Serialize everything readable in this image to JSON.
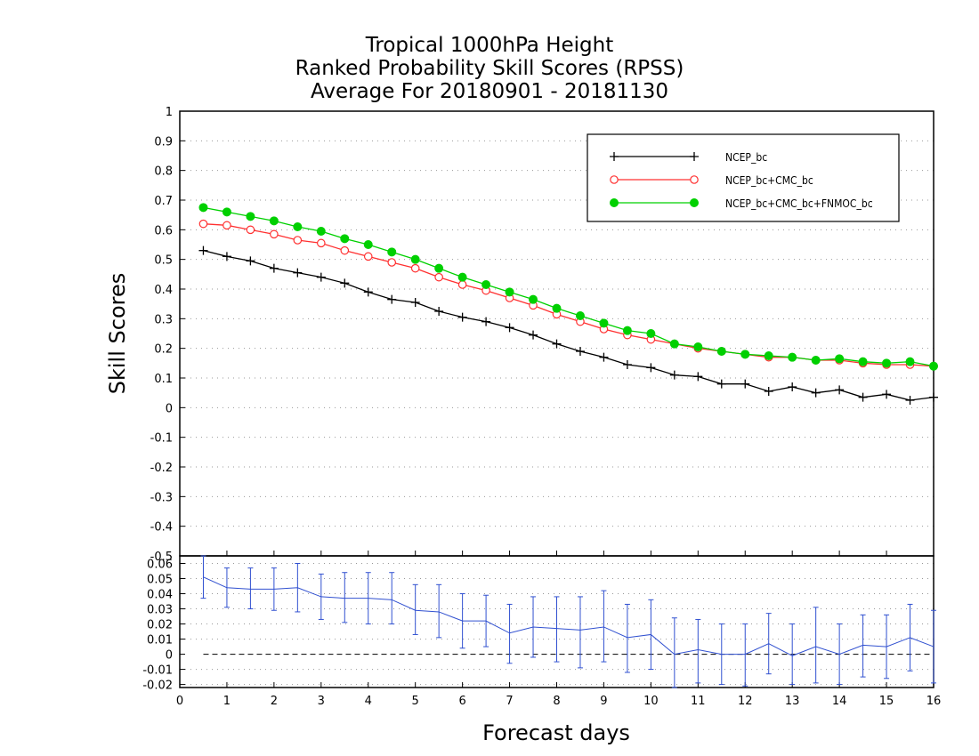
{
  "chart_data": [
    {
      "type": "line",
      "title": [
        "Tropical 1000hPa Height",
        "Ranked Probability Skill Scores (RPSS)",
        "Average For 20180901 - 20181130"
      ],
      "xlabel": "Forecast days",
      "ylabel": "Skill Scores",
      "xlim": [
        0,
        16
      ],
      "ylim": [
        -0.5,
        1
      ],
      "yticks": [
        -0.5,
        -0.4,
        -0.3,
        -0.2,
        -0.1,
        0,
        0.1,
        0.2,
        0.3,
        0.4,
        0.5,
        0.6,
        0.7,
        0.8,
        0.9,
        1
      ],
      "ytick_labels": [
        "-0.5",
        "-0.4",
        "-0.3",
        "-0.2",
        "-0.1",
        "0",
        "0.1",
        "0.2",
        "0.3",
        "0.4",
        "0.5",
        "0.6",
        "0.7",
        "0.8",
        "0.9",
        "1"
      ],
      "grid": "dotted horizontal",
      "legend_position": "top-right",
      "x": [
        0.5,
        1,
        1.5,
        2,
        2.5,
        3,
        3.5,
        4,
        4.5,
        5,
        5.5,
        6,
        6.5,
        7,
        7.5,
        8,
        8.5,
        9,
        9.5,
        10,
        10.5,
        11,
        11.5,
        12,
        12.5,
        13,
        13.5,
        14,
        14.5,
        15,
        15.5,
        16
      ],
      "series": [
        {
          "name": "NCEP_bc",
          "color": "#000000",
          "marker": "plus",
          "values": [
            0.53,
            0.51,
            0.495,
            0.47,
            0.455,
            0.44,
            0.42,
            0.39,
            0.365,
            0.355,
            0.325,
            0.305,
            0.29,
            0.27,
            0.245,
            0.215,
            0.19,
            0.17,
            0.145,
            0.135,
            0.11,
            0.105,
            0.08,
            0.08,
            0.055,
            0.07,
            0.05,
            0.06,
            0.035,
            0.045,
            0.025,
            0.035
          ]
        },
        {
          "name": "NCEP_bc+CMC_bc",
          "color": "#ff3030",
          "marker": "open-circle",
          "values": [
            0.62,
            0.615,
            0.6,
            0.585,
            0.565,
            0.555,
            0.53,
            0.51,
            0.49,
            0.47,
            0.44,
            0.415,
            0.395,
            0.37,
            0.345,
            0.315,
            0.29,
            0.265,
            0.245,
            0.23,
            0.215,
            0.2,
            0.19,
            0.18,
            0.17,
            0.17,
            0.16,
            0.16,
            0.15,
            0.145,
            0.145,
            0.14
          ]
        },
        {
          "name": "NCEP_bc+CMC_bc+FNMOC_bc",
          "color": "#00d000",
          "marker": "filled-circle",
          "values": [
            0.675,
            0.66,
            0.645,
            0.63,
            0.61,
            0.595,
            0.57,
            0.55,
            0.525,
            0.5,
            0.47,
            0.44,
            0.415,
            0.39,
            0.365,
            0.335,
            0.31,
            0.285,
            0.26,
            0.25,
            0.215,
            0.205,
            0.19,
            0.18,
            0.175,
            0.17,
            0.16,
            0.165,
            0.155,
            0.15,
            0.155,
            0.14
          ]
        }
      ]
    },
    {
      "type": "line",
      "xlabel": "Forecast days",
      "xlim": [
        0,
        16
      ],
      "xticks": [
        0,
        1,
        2,
        3,
        4,
        5,
        6,
        7,
        8,
        9,
        10,
        11,
        12,
        13,
        14,
        15,
        16
      ],
      "xtick_labels": [
        "0",
        "1",
        "2",
        "3",
        "4",
        "5",
        "6",
        "7",
        "8",
        "9",
        "10",
        "11",
        "12",
        "13",
        "14",
        "15",
        "16"
      ],
      "ylim": [
        -0.022,
        0.065
      ],
      "yticks": [
        -0.02,
        -0.01,
        0,
        0.01,
        0.02,
        0.03,
        0.04,
        0.05,
        0.06
      ],
      "ytick_labels": [
        "-0.02",
        "-0.01",
        "0",
        "0.01",
        "0.02",
        "0.03",
        "0.04",
        "0.05",
        "0.06"
      ],
      "zero_line": "dashed",
      "x": [
        0.5,
        1,
        1.5,
        2,
        2.5,
        3,
        3.5,
        4,
        4.5,
        5,
        5.5,
        6,
        6.5,
        7,
        7.5,
        8,
        8.5,
        9,
        9.5,
        10,
        10.5,
        11,
        11.5,
        12,
        12.5,
        13,
        13.5,
        14,
        14.5,
        15,
        15.5,
        16
      ],
      "series": [
        {
          "color": "#3050d0",
          "values": [
            0.051,
            0.044,
            0.043,
            0.043,
            0.044,
            0.038,
            0.037,
            0.037,
            0.036,
            0.029,
            0.028,
            0.022,
            0.022,
            0.014,
            0.018,
            0.017,
            0.016,
            0.018,
            0.011,
            0.013,
            0.0,
            0.003,
            0.0,
            0.0,
            0.007,
            -0.001,
            0.005,
            0.0,
            0.006,
            0.005,
            0.011,
            0.005
          ],
          "error_low": [
            0.037,
            0.031,
            0.03,
            0.029,
            0.028,
            0.023,
            0.021,
            0.02,
            0.02,
            0.013,
            0.011,
            0.004,
            0.005,
            -0.006,
            -0.002,
            -0.005,
            -0.009,
            -0.005,
            -0.012,
            -0.01,
            -0.022,
            -0.019,
            -0.02,
            -0.021,
            -0.013,
            -0.02,
            -0.019,
            -0.02,
            -0.015,
            -0.016,
            -0.011,
            -0.019
          ],
          "error_high": [
            0.065,
            0.057,
            0.057,
            0.057,
            0.06,
            0.053,
            0.054,
            0.054,
            0.054,
            0.046,
            0.046,
            0.04,
            0.039,
            0.033,
            0.038,
            0.038,
            0.038,
            0.042,
            0.033,
            0.036,
            0.024,
            0.023,
            0.02,
            0.02,
            0.027,
            0.02,
            0.031,
            0.02,
            0.026,
            0.026,
            0.033,
            0.029
          ]
        }
      ]
    }
  ]
}
